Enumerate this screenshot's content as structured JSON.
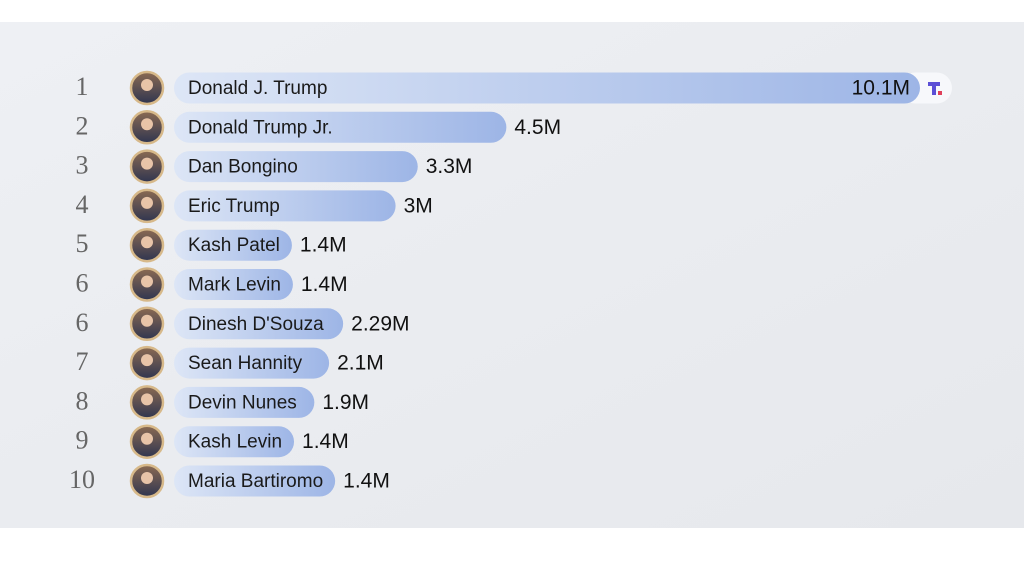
{
  "chart_data": {
    "type": "bar",
    "ranks": [
      "1",
      "2",
      "3",
      "4",
      "5",
      "6",
      "6",
      "7",
      "8",
      "9",
      "10"
    ],
    "categories": [
      "Donald J. Trump",
      "Donald Trump Jr.",
      "Dan Bongino",
      "Eric Trump",
      "Kash Patel",
      "Mark Levin",
      "Dinesh D'Souza",
      "Sean Hannity",
      "Devin Nunes",
      "Kash Levin",
      "Maria Bartiromo"
    ],
    "values": [
      10.1,
      4.5,
      3.3,
      3,
      1.4,
      1.4,
      2.29,
      2.1,
      1.9,
      1.4,
      1.4
    ],
    "value_labels": [
      "10.1M",
      "4.5M",
      "3.3M",
      "3M",
      "1.4M",
      "1.4M",
      "2.29M",
      "2.1M",
      "1.9M",
      "1.4M",
      "1.4M"
    ],
    "color": "#9db5e6"
  }
}
